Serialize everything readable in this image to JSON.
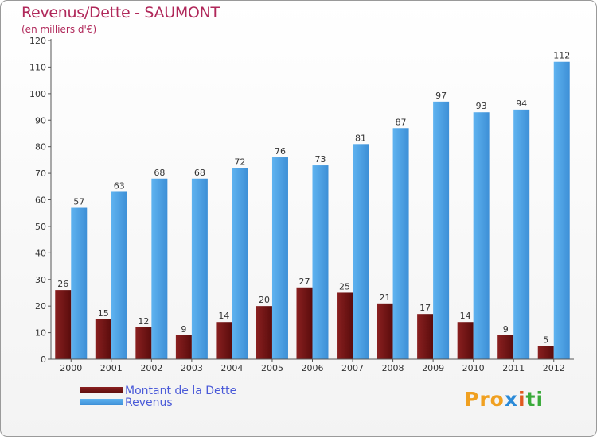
{
  "title": "Revenus/Dette - SAUMONT",
  "subtitle": "(en milliers d'€)",
  "logo_text": "Proxiti",
  "colors": {
    "dette": "#6e1414",
    "revenus": "#4da3e6",
    "title": "#b0285a",
    "legend_text": "#4a5ad8"
  },
  "chart_data": {
    "type": "bar",
    "title": "Revenus/Dette - SAUMONT",
    "subtitle": "(en milliers d'€)",
    "xlabel": "",
    "ylabel": "",
    "ylim": [
      0,
      120
    ],
    "yticks": [
      0,
      10,
      20,
      30,
      40,
      50,
      60,
      70,
      80,
      90,
      100,
      110,
      120
    ],
    "grid": false,
    "legend_position": "bottom-left",
    "categories": [
      "2000",
      "2001",
      "2002",
      "2003",
      "2004",
      "2005",
      "2006",
      "2007",
      "2008",
      "2009",
      "2010",
      "2011",
      "2012"
    ],
    "series": [
      {
        "name": "Montant de la Dette",
        "values": [
          26,
          15,
          12,
          9,
          14,
          20,
          27,
          25,
          21,
          17,
          14,
          9,
          5
        ]
      },
      {
        "name": "Revenus",
        "values": [
          57,
          63,
          68,
          68,
          72,
          76,
          73,
          81,
          87,
          97,
          93,
          94,
          112
        ]
      }
    ]
  }
}
